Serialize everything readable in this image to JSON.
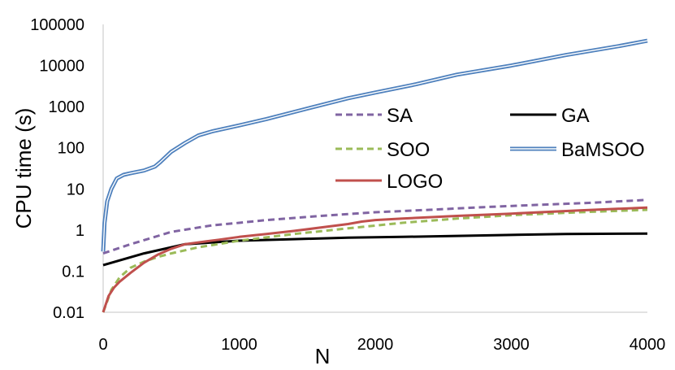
{
  "chart_data": {
    "type": "line",
    "xlabel": "N",
    "ylabel": "CPU time (s)",
    "xlim": [
      0,
      4000
    ],
    "ylim": [
      0.01,
      100000
    ],
    "yscale": "log",
    "grid": false,
    "legend_position": "center-right",
    "x_ticks": [
      "0",
      "1000",
      "2000",
      "3000",
      "4000"
    ],
    "y_ticks": [
      "0.01",
      "0.1",
      "1",
      "10",
      "100",
      "1000",
      "10000",
      "100000"
    ],
    "series": [
      {
        "name": "SA",
        "color": "#8064A2",
        "style": "dashed",
        "x": [
          0,
          200,
          500,
          800,
          1000,
          1200,
          1600,
          2000,
          2400,
          2800,
          3200,
          3600,
          3800,
          4000
        ],
        "y": [
          0.27,
          0.45,
          0.9,
          1.3,
          1.5,
          1.75,
          2.2,
          2.7,
          3.1,
          3.6,
          4.1,
          4.6,
          5.0,
          5.4
        ]
      },
      {
        "name": "GA",
        "color": "#000000",
        "style": "solid",
        "x": [
          0,
          300,
          600,
          1000,
          1400,
          1800,
          2200,
          2600,
          3000,
          3400,
          4000
        ],
        "y": [
          0.14,
          0.27,
          0.45,
          0.55,
          0.6,
          0.65,
          0.68,
          0.72,
          0.76,
          0.8,
          0.82
        ]
      },
      {
        "name": "SOO",
        "color": "#9BBB59",
        "style": "dashed",
        "x": [
          0,
          20,
          60,
          120,
          200,
          300,
          400,
          500,
          700,
          1000,
          1400,
          1800,
          2200,
          2600,
          3000,
          3500,
          4000
        ],
        "y": [
          0.01,
          0.015,
          0.035,
          0.07,
          0.12,
          0.17,
          0.22,
          0.27,
          0.38,
          0.55,
          0.8,
          1.1,
          1.5,
          1.9,
          2.3,
          2.7,
          3.1
        ]
      },
      {
        "name": "BaMSOO",
        "color": "#4F81BD",
        "style": "double",
        "x": [
          0,
          10,
          30,
          60,
          100,
          150,
          200,
          300,
          380,
          420,
          500,
          600,
          700,
          800,
          1000,
          1200,
          1500,
          1800,
          2000,
          2300,
          2600,
          3000,
          3400,
          3800,
          4000
        ],
        "y": [
          0.3,
          1.5,
          5,
          10,
          18,
          22,
          24,
          28,
          35,
          45,
          80,
          130,
          200,
          250,
          350,
          500,
          900,
          1600,
          2200,
          3500,
          6000,
          10000,
          18000,
          30000,
          40000
        ]
      },
      {
        "name": "LOGO",
        "color": "#C0504D",
        "style": "solid",
        "x": [
          0,
          40,
          80,
          120,
          200,
          300,
          400,
          500,
          600,
          700,
          850,
          1000,
          1200,
          1400,
          1600,
          1800,
          1900,
          2000,
          2200,
          2600,
          3000,
          3500,
          4000
        ],
        "y": [
          0.01,
          0.025,
          0.04,
          0.055,
          0.09,
          0.16,
          0.25,
          0.35,
          0.45,
          0.5,
          0.58,
          0.68,
          0.8,
          0.95,
          1.15,
          1.4,
          1.6,
          1.75,
          1.9,
          2.2,
          2.5,
          3.0,
          3.5
        ]
      }
    ]
  }
}
